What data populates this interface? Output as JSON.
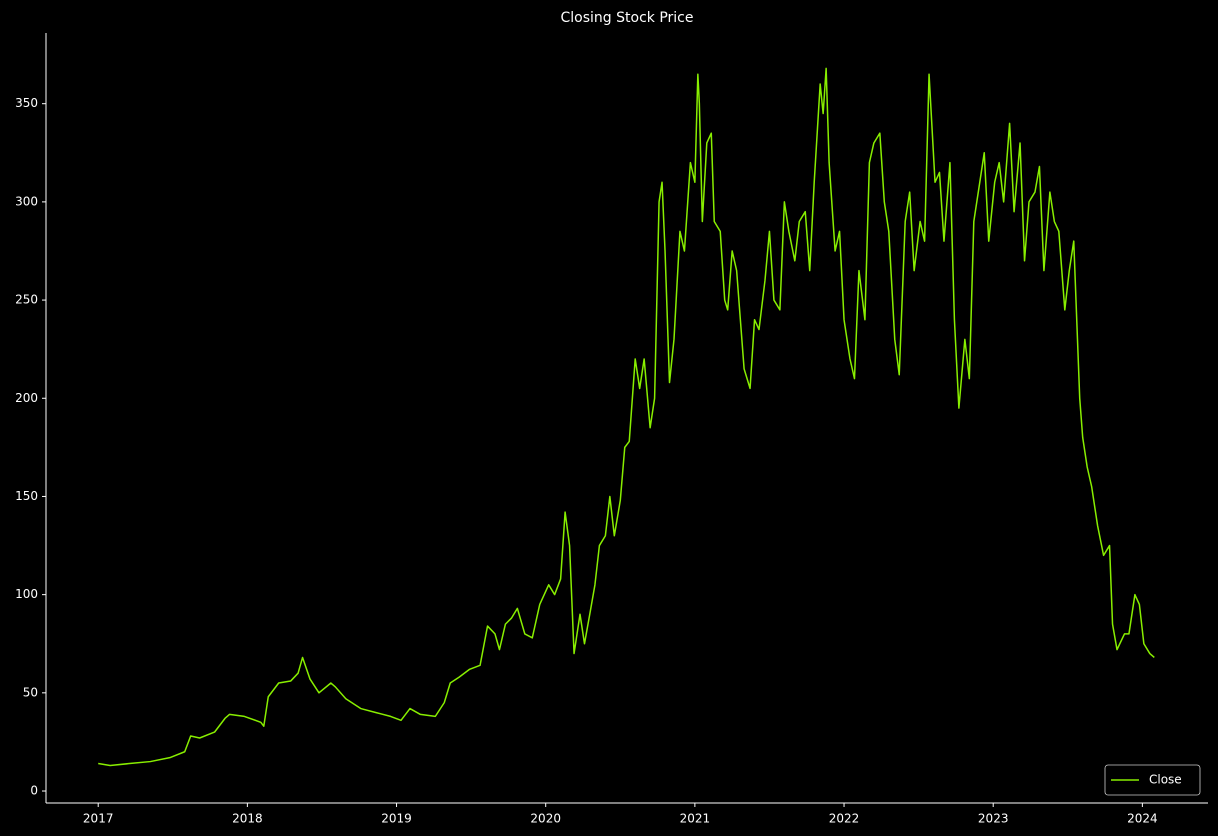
{
  "chart_data": {
    "type": "line",
    "title": "Closing Stock Price",
    "x": [
      2017.0,
      2017.08,
      2017.21,
      2017.35,
      2017.48,
      2017.58,
      2017.62,
      2017.68,
      2017.78,
      2017.85,
      2017.88,
      2017.98,
      2018.09,
      2018.11,
      2018.14,
      2018.21,
      2018.29,
      2018.34,
      2018.37,
      2018.42,
      2018.48,
      2018.56,
      2018.59,
      2018.66,
      2018.76,
      2018.86,
      2018.96,
      2019.03,
      2019.09,
      2019.16,
      2019.26,
      2019.32,
      2019.36,
      2019.42,
      2019.49,
      2019.56,
      2019.61,
      2019.66,
      2019.69,
      2019.73,
      2019.77,
      2019.81,
      2019.86,
      2019.91,
      2019.96,
      2020.02,
      2020.06,
      2020.1,
      2020.13,
      2020.16,
      2020.19,
      2020.23,
      2020.26,
      2020.3,
      2020.33,
      2020.36,
      2020.4,
      2020.43,
      2020.46,
      2020.5,
      2020.53,
      2020.56,
      2020.6,
      2020.63,
      2020.66,
      2020.7,
      2020.73,
      2020.76,
      2020.78,
      2020.8,
      2020.83,
      2020.86,
      2020.9,
      2020.93,
      2020.97,
      2021.0,
      2021.02,
      2021.03,
      2021.05,
      2021.08,
      2021.11,
      2021.13,
      2021.17,
      2021.2,
      2021.22,
      2021.25,
      2021.28,
      2021.3,
      2021.33,
      2021.37,
      2021.4,
      2021.43,
      2021.47,
      2021.5,
      2021.53,
      2021.57,
      2021.6,
      2021.63,
      2021.67,
      2021.7,
      2021.74,
      2021.77,
      2021.8,
      2021.84,
      2021.86,
      2021.88,
      2021.9,
      2021.94,
      2021.97,
      2022.0,
      2022.04,
      2022.07,
      2022.1,
      2022.14,
      2022.17,
      2022.2,
      2022.24,
      2022.27,
      2022.3,
      2022.34,
      2022.37,
      2022.41,
      2022.44,
      2022.47,
      2022.51,
      2022.54,
      2022.57,
      2022.61,
      2022.64,
      2022.67,
      2022.71,
      2022.74,
      2022.77,
      2022.81,
      2022.84,
      2022.87,
      2022.91,
      2022.94,
      2022.97,
      2023.01,
      2023.04,
      2023.07,
      2023.11,
      2023.14,
      2023.18,
      2023.21,
      2023.24,
      2023.28,
      2023.31,
      2023.34,
      2023.38,
      2023.41,
      2023.44,
      2023.48,
      2023.51,
      2023.54,
      2023.56,
      2023.58,
      2023.6,
      2023.63,
      2023.66,
      2023.7,
      2023.74,
      2023.78,
      2023.8,
      2023.83,
      2023.88,
      2023.91,
      2023.95,
      2023.98,
      2024.01,
      2024.05,
      2024.08
    ],
    "series": [
      {
        "name": "Close",
        "color": "#88ee00",
        "values": [
          14,
          13,
          14,
          15,
          17,
          20,
          28,
          27,
          30,
          37,
          39,
          38,
          35,
          33,
          48,
          55,
          56,
          60,
          68,
          57,
          50,
          55,
          53,
          47,
          42,
          40,
          38,
          36,
          42,
          39,
          38,
          45,
          55,
          58,
          62,
          64,
          84,
          80,
          72,
          85,
          88,
          93,
          80,
          78,
          95,
          105,
          100,
          108,
          142,
          125,
          70,
          90,
          75,
          92,
          105,
          125,
          130,
          150,
          130,
          148,
          175,
          178,
          220,
          205,
          220,
          185,
          200,
          300,
          310,
          275,
          208,
          230,
          285,
          275,
          320,
          310,
          365,
          350,
          290,
          330,
          335,
          290,
          285,
          250,
          245,
          275,
          265,
          245,
          215,
          205,
          240,
          235,
          260,
          285,
          250,
          245,
          300,
          285,
          270,
          290,
          295,
          265,
          310,
          360,
          345,
          368,
          320,
          275,
          285,
          240,
          220,
          210,
          265,
          240,
          320,
          330,
          335,
          300,
          285,
          230,
          212,
          290,
          305,
          265,
          290,
          280,
          365,
          310,
          315,
          280,
          320,
          240,
          195,
          230,
          210,
          290,
          310,
          325,
          280,
          310,
          320,
          300,
          340,
          295,
          330,
          270,
          300,
          305,
          318,
          265,
          305,
          290,
          285,
          245,
          265,
          280,
          240,
          200,
          180,
          165,
          155,
          135,
          120,
          125,
          85,
          72,
          80,
          80,
          100,
          95,
          75,
          70,
          68
        ]
      }
    ],
    "xlim": [
      2016.65,
      2024.44
    ],
    "xticks": [
      2017,
      2018,
      2019,
      2020,
      2021,
      2022,
      2023,
      2024
    ],
    "ylim": [
      -6.1,
      386
    ],
    "yticks": [
      0,
      50,
      100,
      150,
      200,
      250,
      300,
      350
    ],
    "legend": "lower right",
    "grid": false
  }
}
